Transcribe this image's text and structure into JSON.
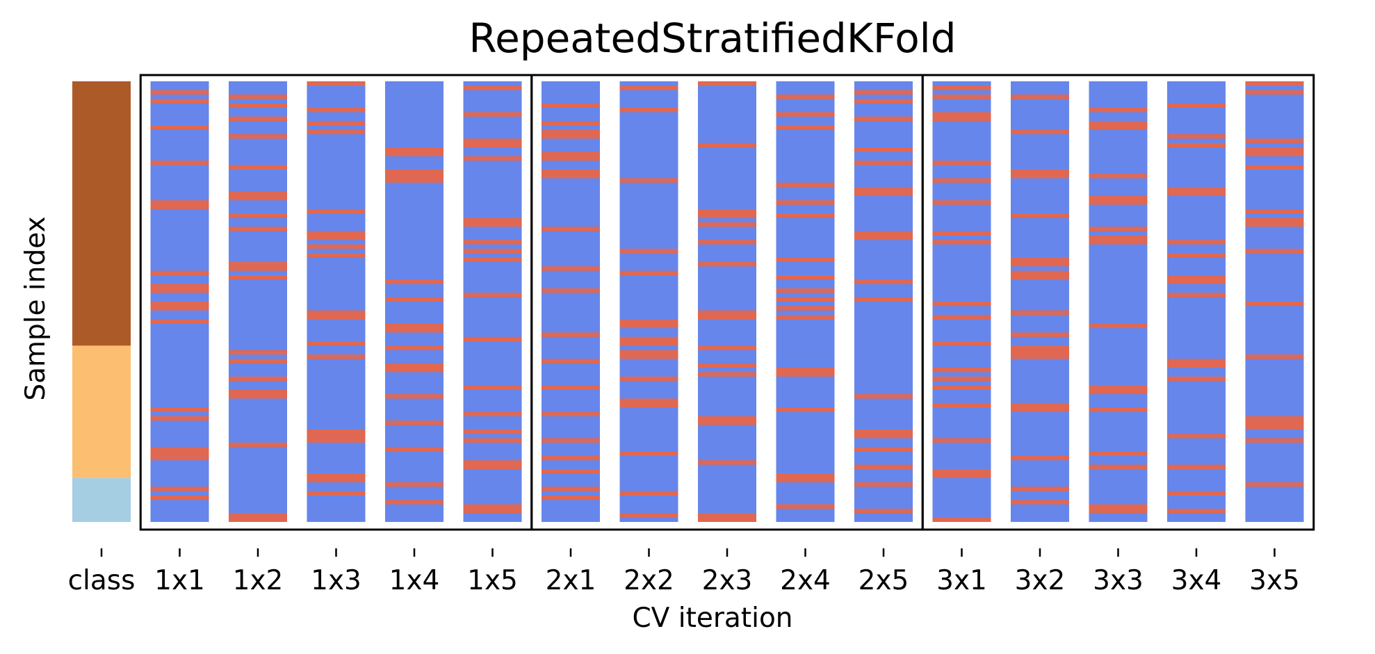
{
  "chart_data": {
    "type": "heatmap",
    "title": "RepeatedStratifiedKFold",
    "xlabel": "CV iteration",
    "ylabel": "Sample index",
    "categories": [
      "class",
      "1x1",
      "1x2",
      "1x3",
      "1x4",
      "1x5",
      "2x1",
      "2x2",
      "2x3",
      "2x4",
      "2x5",
      "3x1",
      "3x2",
      "3x3",
      "3x4",
      "3x5"
    ],
    "n_samples": 100,
    "repeats": 3,
    "folds_per_repeat": 5,
    "legend": "none",
    "grid": false,
    "colors": {
      "train": "#6686eb",
      "test": "#e06852",
      "class": [
        "#ad5a29",
        "#fcbf71",
        "#a6cee3"
      ],
      "frame": "#000000"
    },
    "class_blocks": [
      {
        "class": 0,
        "start": 0,
        "end": 60
      },
      {
        "class": 1,
        "start": 60,
        "end": 90
      },
      {
        "class": 2,
        "start": 90,
        "end": 100
      }
    ],
    "test_indices": {
      "1x1": [
        2,
        4,
        10,
        18,
        27,
        28,
        43,
        46,
        47,
        50,
        51,
        54,
        74,
        76,
        83,
        84,
        85,
        92,
        94
      ],
      "1x2": [
        3,
        5,
        8,
        12,
        19,
        25,
        26,
        30,
        33,
        41,
        42,
        44,
        61,
        63,
        67,
        70,
        71,
        82,
        98,
        99
      ],
      "1x3": [
        0,
        6,
        9,
        11,
        29,
        34,
        35,
        37,
        39,
        52,
        53,
        59,
        62,
        79,
        80,
        81,
        89,
        90,
        93
      ],
      "1x4": [
        15,
        16,
        20,
        21,
        22,
        45,
        49,
        55,
        56,
        60,
        64,
        65,
        71,
        77,
        83,
        91,
        95
      ],
      "1x5": [
        1,
        7,
        13,
        14,
        17,
        31,
        32,
        36,
        38,
        40,
        48,
        58,
        69,
        75,
        79,
        81,
        86,
        87,
        96,
        97
      ],
      "2x1": [
        5,
        9,
        11,
        12,
        16,
        17,
        20,
        21,
        33,
        42,
        47,
        57,
        63,
        69,
        75,
        81,
        85,
        88,
        92,
        94
      ],
      "2x2": [
        1,
        6,
        22,
        38,
        43,
        54,
        55,
        58,
        59,
        61,
        62,
        67,
        72,
        73,
        84,
        93,
        98
      ],
      "2x3": [
        0,
        14,
        29,
        30,
        32,
        36,
        41,
        52,
        53,
        60,
        64,
        66,
        76,
        77,
        86,
        98,
        99
      ],
      "2x4": [
        3,
        7,
        10,
        23,
        27,
        30,
        40,
        44,
        47,
        49,
        51,
        53,
        65,
        66,
        74,
        89,
        90,
        96
      ],
      "2x5": [
        2,
        4,
        8,
        15,
        18,
        24,
        25,
        34,
        35,
        45,
        49,
        71,
        79,
        80,
        83,
        87,
        91,
        97
      ],
      "3x1": [
        1,
        3,
        7,
        8,
        18,
        22,
        27,
        34,
        36,
        50,
        53,
        59,
        65,
        67,
        69,
        73,
        81,
        88,
        89,
        99
      ],
      "3x2": [
        3,
        11,
        20,
        21,
        30,
        40,
        41,
        43,
        44,
        52,
        57,
        60,
        61,
        62,
        73,
        74,
        85,
        92,
        95
      ],
      "3x3": [
        6,
        9,
        10,
        21,
        26,
        27,
        33,
        35,
        36,
        55,
        69,
        70,
        74,
        84,
        87,
        96,
        97
      ],
      "3x4": [
        5,
        12,
        14,
        24,
        25,
        36,
        39,
        44,
        45,
        48,
        63,
        64,
        67,
        80,
        87,
        93,
        97
      ],
      "3x5": [
        0,
        2,
        13,
        15,
        16,
        19,
        29,
        31,
        32,
        38,
        50,
        62,
        76,
        77,
        78,
        81,
        91
      ]
    }
  }
}
